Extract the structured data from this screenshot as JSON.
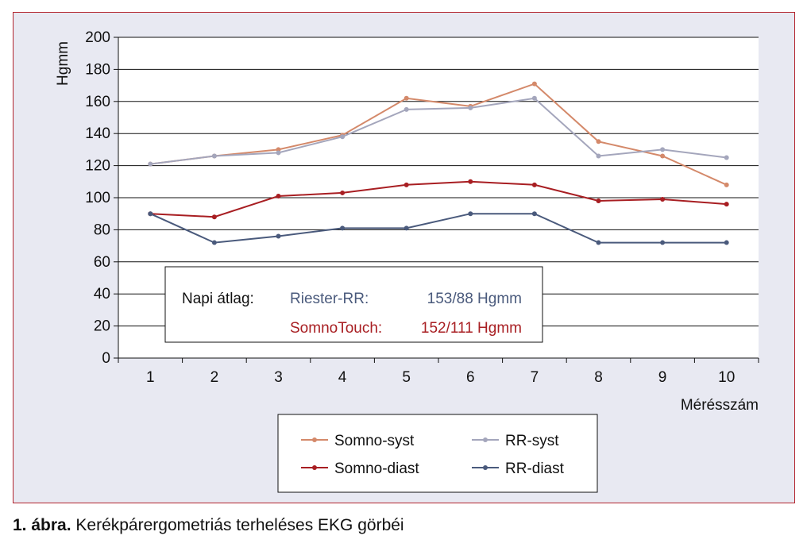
{
  "chart_data": {
    "type": "line",
    "ylabel": "Hgmm",
    "xlabel": "Mérésszám",
    "x": [
      1,
      2,
      3,
      4,
      5,
      6,
      7,
      8,
      9,
      10
    ],
    "ylim": [
      0,
      200
    ],
    "yticks": [
      0,
      20,
      40,
      60,
      80,
      100,
      120,
      140,
      160,
      180,
      200
    ],
    "grid": "horizontal",
    "series": [
      {
        "name": "Somno-syst",
        "color": "#d4896a",
        "values": [
          121,
          126,
          130,
          139,
          162,
          157,
          171,
          135,
          126,
          108
        ]
      },
      {
        "name": "RR-syst",
        "color": "#a4a6bc",
        "values": [
          121,
          126,
          128,
          138,
          155,
          156,
          162,
          126,
          130,
          125
        ]
      },
      {
        "name": "Somno-diast",
        "color": "#a81e22",
        "values": [
          90,
          88,
          101,
          103,
          108,
          110,
          108,
          98,
          99,
          96
        ]
      },
      {
        "name": "RR-diast",
        "color": "#4a5a7c",
        "values": [
          90,
          72,
          76,
          81,
          81,
          90,
          90,
          72,
          72,
          72
        ]
      }
    ],
    "legend_position": "bottom-center",
    "annotation": {
      "label": "Napi átlag:",
      "lines": [
        {
          "name": "Riester-RR:",
          "value": "153/88 Hgmm",
          "color": "#4a5a7c"
        },
        {
          "name": "SomnoTouch:",
          "value": "152/111 Hgmm",
          "color": "#a81e22"
        }
      ]
    }
  },
  "caption": {
    "number": "1. ábra.",
    "text": "Kerékpárergometriás terheléses EKG görbéi"
  }
}
